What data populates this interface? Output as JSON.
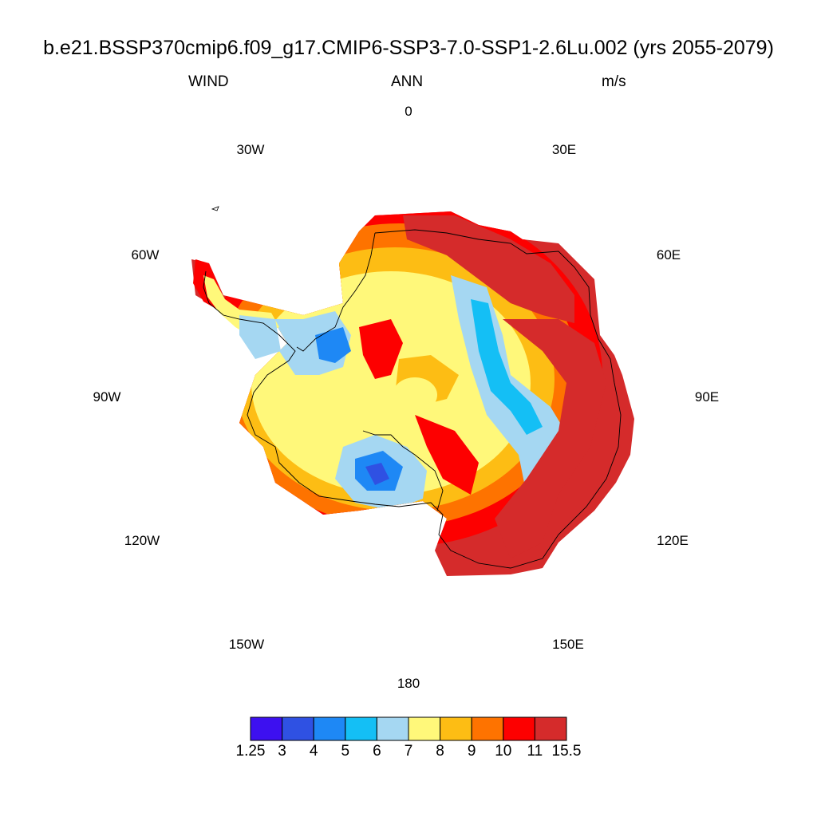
{
  "header": {
    "title": "b.e21.BSSP370cmip6.f09_g17.CMIP6-SSP3-7.0-SSP1-2.6Lu.002 (yrs 2055-2079)",
    "variable": "WIND",
    "period": "ANN",
    "units": "m/s"
  },
  "map": {
    "projection": "south polar stereographic",
    "region": "Antarctica",
    "longitude_labels": [
      "0",
      "30E",
      "60E",
      "90E",
      "120E",
      "150E",
      "180",
      "150W",
      "120W",
      "90W",
      "60W",
      "30W"
    ],
    "coastline_color": "#000000"
  },
  "colorbar": {
    "labels": [
      "1.25",
      "3",
      "4",
      "5",
      "6",
      "7",
      "8",
      "9",
      "10",
      "11",
      "15.5"
    ],
    "colors": [
      "#3d10f0",
      "#2f51e3",
      "#1e88f5",
      "#14bff5",
      "#a5d7f2",
      "#fff87a",
      "#fdbd14",
      "#fe7300",
      "#fd0000",
      "#d52b2b"
    ]
  }
}
